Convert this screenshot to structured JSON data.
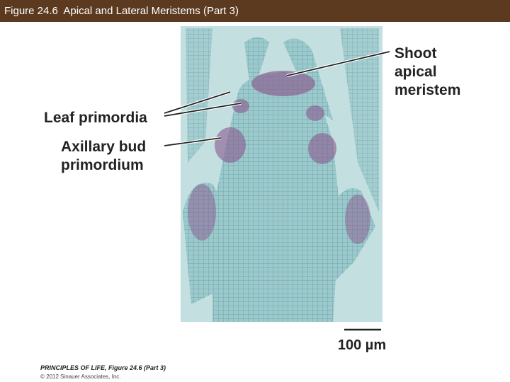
{
  "header": {
    "title": "Figure 24.6  Apical and Lateral Meristems (Part 3)"
  },
  "labels": {
    "shoot_apical_meristem": [
      "Shoot",
      "apical",
      "meristem"
    ],
    "leaf_primordia": "Leaf primordia",
    "axillary_bud_primordium": [
      "Axillary bud",
      "primordium"
    ]
  },
  "scale_bar": {
    "label": "100 µm"
  },
  "footer": {
    "source": "PRINCIPLES OF LIFE, Figure 24.6 (Part 3)",
    "copyright": "© 2012 Sinauer Associates, Inc."
  }
}
